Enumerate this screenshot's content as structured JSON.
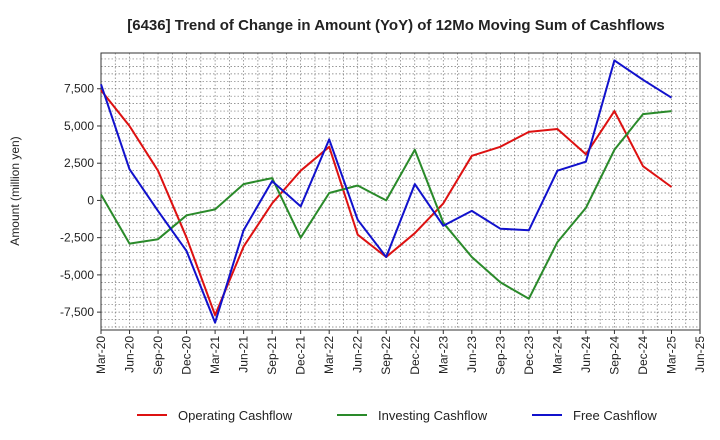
{
  "chart_data": {
    "type": "line",
    "title": "[6436]  Trend of Change in Amount (YoY) of 12Mo Moving Sum of Cashflows",
    "xlabel": "",
    "ylabel": "Amount (million yen)",
    "ylim": [
      -8700,
      9900
    ],
    "yticks": [
      7500,
      5000,
      2500,
      0,
      -2500,
      -5000,
      -7500
    ],
    "ytick_labels": [
      "7,500",
      "5,000",
      "2,500",
      "0",
      "-2,500",
      "-5,000",
      "-7,500"
    ],
    "categories": [
      "Mar-20",
      "Jun-20",
      "Sep-20",
      "Dec-20",
      "Mar-21",
      "Jun-21",
      "Sep-21",
      "Dec-21",
      "Mar-22",
      "Jun-22",
      "Sep-22",
      "Dec-22",
      "Mar-23",
      "Jun-23",
      "Sep-23",
      "Dec-23",
      "Mar-24",
      "Jun-24",
      "Sep-24",
      "Dec-24",
      "Mar-25",
      "Jun-25"
    ],
    "grid": true,
    "legend_position": "bottom",
    "series": [
      {
        "name": "Operating Cashflow",
        "color": "#dd1111",
        "values": [
          7400,
          5000,
          2000,
          -2500,
          -7700,
          -3100,
          -200,
          2000,
          3600,
          -2300,
          -3800,
          -2200,
          -200,
          3000,
          3600,
          4600,
          4800,
          3100,
          6000,
          2300,
          900,
          null
        ]
      },
      {
        "name": "Investing Cashflow",
        "color": "#2a8a2a",
        "values": [
          400,
          -2900,
          -2600,
          -1000,
          -600,
          1100,
          1500,
          -2500,
          500,
          1000,
          0,
          3400,
          -1500,
          -3800,
          -5500,
          -6600,
          -2800,
          -500,
          3400,
          5800,
          6000,
          null
        ]
      },
      {
        "name": "Free Cashflow",
        "color": "#1111cc",
        "values": [
          7800,
          2100,
          -700,
          -3400,
          -8200,
          -2000,
          1300,
          -400,
          4100,
          -1300,
          -3800,
          1100,
          -1700,
          -700,
          -1900,
          -2000,
          2000,
          2600,
          9400,
          8100,
          6900,
          null
        ]
      }
    ]
  }
}
